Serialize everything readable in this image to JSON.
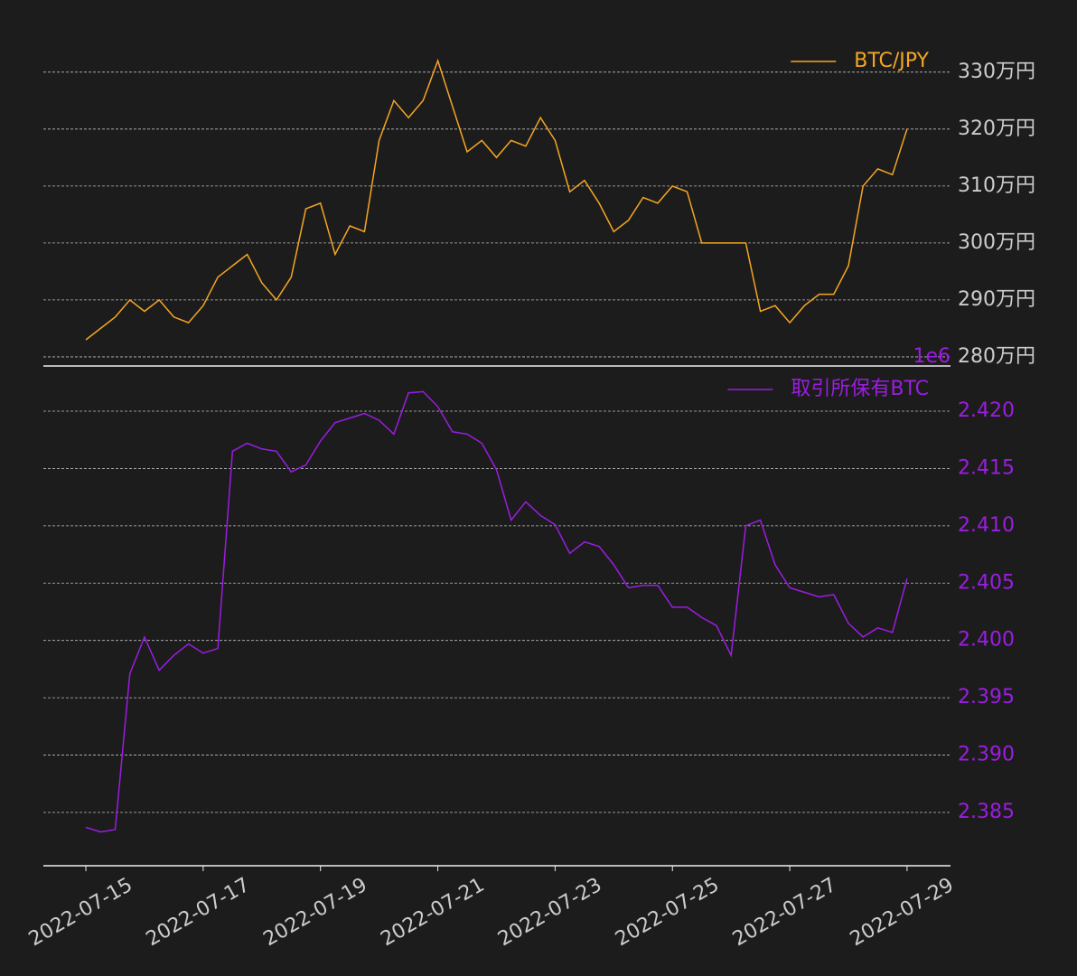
{
  "chart_data": [
    {
      "type": "line",
      "legend": "upper right",
      "grid": true,
      "x": [
        "2022-07-15 00:00",
        "2022-07-15 06:00",
        "2022-07-15 12:00",
        "2022-07-15 18:00",
        "2022-07-16 00:00",
        "2022-07-16 06:00",
        "2022-07-16 12:00",
        "2022-07-16 18:00",
        "2022-07-17 00:00",
        "2022-07-17 06:00",
        "2022-07-17 12:00",
        "2022-07-17 18:00",
        "2022-07-18 00:00",
        "2022-07-18 06:00",
        "2022-07-18 12:00",
        "2022-07-18 18:00",
        "2022-07-19 00:00",
        "2022-07-19 06:00",
        "2022-07-19 12:00",
        "2022-07-19 18:00",
        "2022-07-20 00:00",
        "2022-07-20 06:00",
        "2022-07-20 12:00",
        "2022-07-20 18:00",
        "2022-07-21 00:00",
        "2022-07-21 06:00",
        "2022-07-21 12:00",
        "2022-07-21 18:00",
        "2022-07-22 00:00",
        "2022-07-22 06:00",
        "2022-07-22 12:00",
        "2022-07-22 18:00",
        "2022-07-23 00:00",
        "2022-07-23 06:00",
        "2022-07-23 12:00",
        "2022-07-23 18:00",
        "2022-07-24 00:00",
        "2022-07-24 06:00",
        "2022-07-24 12:00",
        "2022-07-24 18:00",
        "2022-07-25 00:00",
        "2022-07-25 06:00",
        "2022-07-25 12:00",
        "2022-07-25 18:00",
        "2022-07-26 00:00",
        "2022-07-26 06:00",
        "2022-07-26 12:00",
        "2022-07-26 18:00",
        "2022-07-27 00:00",
        "2022-07-27 06:00",
        "2022-07-27 12:00",
        "2022-07-27 18:00",
        "2022-07-28 00:00",
        "2022-07-28 06:00",
        "2022-07-28 12:00",
        "2022-07-28 18:00",
        "2022-07-29 00:00"
      ],
      "xlim": [
        "2022-07-14 06:37",
        "2022-07-29 17:46"
      ],
      "ylim": [
        2784000,
        3360000
      ],
      "yticks": [
        {
          "value": 2800000,
          "label": "280万円"
        },
        {
          "value": 2900000,
          "label": "290万円"
        },
        {
          "value": 3000000,
          "label": "300万円"
        },
        {
          "value": 3100000,
          "label": "310万円"
        },
        {
          "value": 3200000,
          "label": "320万円"
        },
        {
          "value": 3300000,
          "label": "330万円"
        }
      ],
      "tick_color": "#cccccc",
      "series": [
        {
          "name": "BTC/JPY",
          "color": "#f5a623",
          "values": [
            2830000,
            2850000,
            2870000,
            2900000,
            2880000,
            2900000,
            2870000,
            2860000,
            2890000,
            2940000,
            2960000,
            2980000,
            2930000,
            2900000,
            2940000,
            3060000,
            3070000,
            2980000,
            3030000,
            3020000,
            3180000,
            3250000,
            3220000,
            3250000,
            3320000,
            3240000,
            3160000,
            3180000,
            3150000,
            3180000,
            3170000,
            3220000,
            3180000,
            3090000,
            3110000,
            3070000,
            3020000,
            3040000,
            3080000,
            3070000,
            3100000,
            3090000,
            3000000,
            3000000,
            3000000,
            3000000,
            2880000,
            2890000,
            2860000,
            2890000,
            2910000,
            2910000,
            2960000,
            3100000,
            3130000,
            3120000,
            3200000
          ]
        }
      ]
    },
    {
      "type": "line",
      "legend": "upper right",
      "grid": true,
      "offset_label": "1e6",
      "x": [
        "2022-07-15 00:00",
        "2022-07-15 06:00",
        "2022-07-15 12:00",
        "2022-07-15 18:00",
        "2022-07-16 00:00",
        "2022-07-16 06:00",
        "2022-07-16 12:00",
        "2022-07-16 18:00",
        "2022-07-17 00:00",
        "2022-07-17 06:00",
        "2022-07-17 12:00",
        "2022-07-17 18:00",
        "2022-07-18 00:00",
        "2022-07-18 06:00",
        "2022-07-18 12:00",
        "2022-07-18 18:00",
        "2022-07-19 00:00",
        "2022-07-19 06:00",
        "2022-07-19 12:00",
        "2022-07-19 18:00",
        "2022-07-20 00:00",
        "2022-07-20 06:00",
        "2022-07-20 12:00",
        "2022-07-20 18:00",
        "2022-07-21 00:00",
        "2022-07-21 06:00",
        "2022-07-21 12:00",
        "2022-07-21 18:00",
        "2022-07-22 00:00",
        "2022-07-22 06:00",
        "2022-07-22 12:00",
        "2022-07-22 18:00",
        "2022-07-23 00:00",
        "2022-07-23 06:00",
        "2022-07-23 12:00",
        "2022-07-23 18:00",
        "2022-07-24 00:00",
        "2022-07-24 06:00",
        "2022-07-24 12:00",
        "2022-07-24 18:00",
        "2022-07-25 00:00",
        "2022-07-25 06:00",
        "2022-07-25 12:00",
        "2022-07-25 18:00",
        "2022-07-26 00:00",
        "2022-07-26 06:00",
        "2022-07-26 12:00",
        "2022-07-26 18:00",
        "2022-07-27 00:00",
        "2022-07-27 06:00",
        "2022-07-27 12:00",
        "2022-07-27 18:00",
        "2022-07-28 00:00",
        "2022-07-28 06:00",
        "2022-07-28 12:00",
        "2022-07-28 18:00",
        "2022-07-29 00:00"
      ],
      "xlim": [
        "2022-07-14 06:37",
        "2022-07-29 17:46"
      ],
      "xticks": [
        "2022-07-15",
        "2022-07-17",
        "2022-07-19",
        "2022-07-21",
        "2022-07-23",
        "2022-07-25",
        "2022-07-27",
        "2022-07-29"
      ],
      "ylim": [
        2380350,
        2423940
      ],
      "yticks": [
        {
          "value": 2385000,
          "label": "2.385"
        },
        {
          "value": 2390000,
          "label": "2.390"
        },
        {
          "value": 2395000,
          "label": "2.395"
        },
        {
          "value": 2400000,
          "label": "2.400"
        },
        {
          "value": 2405000,
          "label": "2.405"
        },
        {
          "value": 2410000,
          "label": "2.410"
        },
        {
          "value": 2415000,
          "label": "2.415"
        },
        {
          "value": 2420000,
          "label": "2.420"
        }
      ],
      "tick_color": "#9b1de0",
      "series": [
        {
          "name": "取引所保有BTC",
          "color": "#9b1de0",
          "values": [
            2383700,
            2383300,
            2383500,
            2397100,
            2400300,
            2397400,
            2398700,
            2399700,
            2398900,
            2399300,
            2416500,
            2417200,
            2416700,
            2416500,
            2414700,
            2415300,
            2417400,
            2419000,
            2419400,
            2419800,
            2419200,
            2418000,
            2421600,
            2421700,
            2420400,
            2418200,
            2418000,
            2417200,
            2414900,
            2410500,
            2412100,
            2410900,
            2410100,
            2407600,
            2408600,
            2408200,
            2406600,
            2404600,
            2404800,
            2404800,
            2402900,
            2402900,
            2402000,
            2401300,
            2398700,
            2410000,
            2410500,
            2406600,
            2404600,
            2404200,
            2403800,
            2404000,
            2401500,
            2400300,
            2401100,
            2400700,
            2405400
          ]
        }
      ]
    }
  ]
}
